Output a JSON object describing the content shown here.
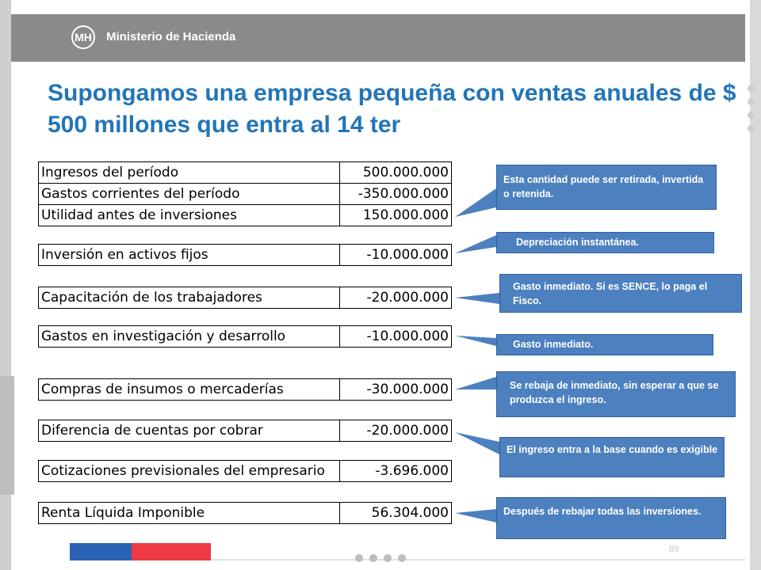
{
  "header": {
    "logo_text": "Ministerio de Hacienda",
    "logo_mark": "MH"
  },
  "title": "Supongamos una empresa pequeña con ventas anuales de $ 500 millones que entra al 14 ter",
  "tables": [
    {
      "rows": [
        {
          "label": "Ingresos del período",
          "value": "500.000.000"
        },
        {
          "label": "Gastos corrientes del período",
          "value": "-350.000.000"
        },
        {
          "label": "Utilidad antes de inversiones",
          "value": "150.000.000"
        }
      ]
    },
    {
      "rows": [
        {
          "label": "Inversión en activos fijos",
          "value": "-10.000.000"
        }
      ]
    },
    {
      "rows": [
        {
          "label": "Capacitación de los trabajadores",
          "value": "-20.000.000"
        }
      ]
    },
    {
      "rows": [
        {
          "label": "Gastos en investigación y desarrollo",
          "value": "-10.000.000"
        }
      ]
    },
    {
      "rows": [
        {
          "label": "Compras de insumos o mercaderías",
          "value": "-30.000.000"
        }
      ]
    },
    {
      "rows": [
        {
          "label": "Diferencia de cuentas por cobrar",
          "value": "-20.000.000"
        }
      ]
    },
    {
      "rows": [
        {
          "label": "Cotizaciones previsionales del empresario",
          "value": "-3.696.000"
        }
      ]
    },
    {
      "rows": [
        {
          "label": "Renta Líquida Imponible",
          "value": "56.304.000"
        }
      ]
    }
  ],
  "callouts": [
    "Esta cantidad puede ser retirada, invertida o retenida.",
    "Depreciación instantánea.",
    "Gasto inmediato. Si es SENCE, lo paga el Fisco.",
    "Gasto inmediato.",
    "Se rebaja de inmediato, sin esperar a que se produzca el ingreso.",
    "El ingreso entra a la base cuando es exigible",
    "Después de rebajar todas las inversiones."
  ],
  "footer": {
    "page_number": "89"
  },
  "colors": {
    "title": "#2275b9",
    "callout_bg": "#4d80bf",
    "header_bg": "#8a8a8a",
    "footer_blue": "#2a63b3",
    "footer_red": "#ee3a43"
  }
}
